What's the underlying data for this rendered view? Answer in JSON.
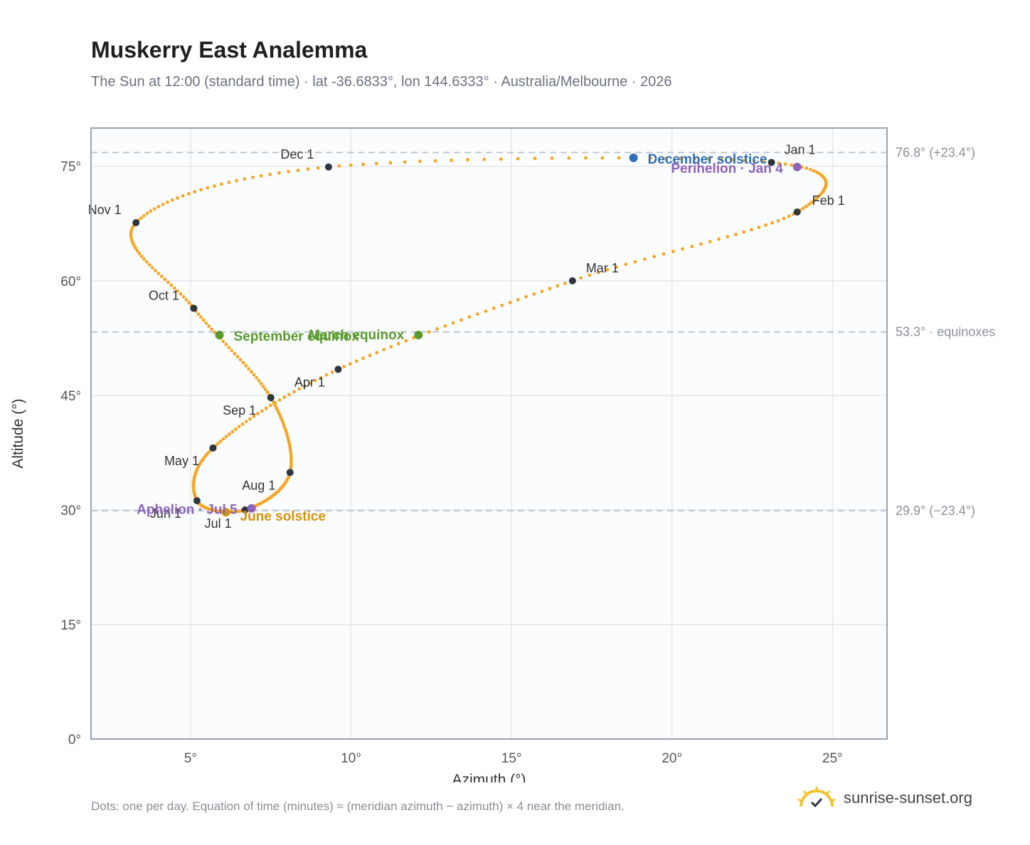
{
  "title": "Muskerry East Analemma",
  "subtitle": "The Sun at 12:00 (standard time) · lat -36.6833°, lon 144.6333° · Australia/Melbourne · 2026",
  "footnote": "Dots: one per day. Equation of time (minutes) ≈ (meridian azimuth − azimuth) × 4 near the meridian.",
  "brand": {
    "name": "sunrise-sunset.org",
    "icon": "sun-check-icon"
  },
  "colors": {
    "curve": "#f5a623",
    "month_point": "#2f3640",
    "solstice_december": "#2f6fb5",
    "solstice_june": "#d4920a",
    "equinox": "#5a9a2f",
    "perihelion": "#8e63b8",
    "reference_line": "#b8c2ce",
    "grid": "#e5e8ec",
    "plot_bg": "#fbfcfd",
    "frame": "#9aa3af"
  },
  "chart_data": {
    "type": "scatter",
    "title": "Muskerry East Analemma",
    "xlabel": "Azimuth (°)",
    "ylabel": "Altitude (°)",
    "xlim": [
      1.9,
      26.7
    ],
    "ylim": [
      0,
      80
    ],
    "x_ticks": [
      5,
      10,
      15,
      20,
      25
    ],
    "x_tick_labels": [
      "5°",
      "10°",
      "15°",
      "20°",
      "25°"
    ],
    "y_ticks": [
      0,
      15,
      30,
      45,
      60,
      75
    ],
    "y_tick_labels": [
      "0°",
      "15°",
      "30°",
      "45°",
      "60°",
      "75°"
    ],
    "grid": true,
    "reference_lines": [
      {
        "y": 76.8,
        "label": "76.8° (+23.4°)"
      },
      {
        "y": 53.3,
        "label": "53.3° · equinoxes"
      },
      {
        "y": 29.9,
        "label": "29.9° (−23.4°)"
      }
    ],
    "months": [
      {
        "label": "Jan 1",
        "x": 23.1,
        "y": 75.5
      },
      {
        "label": "Feb 1",
        "x": 23.9,
        "y": 69.0
      },
      {
        "label": "Mar 1",
        "x": 16.9,
        "y": 60.0
      },
      {
        "label": "Apr 1",
        "x": 9.6,
        "y": 48.4
      },
      {
        "label": "May 1",
        "x": 5.7,
        "y": 38.1
      },
      {
        "label": "Jun 1",
        "x": 5.2,
        "y": 31.2
      },
      {
        "label": "Jul 1",
        "x": 6.7,
        "y": 30.0
      },
      {
        "label": "Aug 1",
        "x": 8.1,
        "y": 34.9
      },
      {
        "label": "Sep 1",
        "x": 7.5,
        "y": 44.7
      },
      {
        "label": "Oct 1",
        "x": 5.1,
        "y": 56.4
      },
      {
        "label": "Nov 1",
        "x": 3.3,
        "y": 67.6
      },
      {
        "label": "Dec 1",
        "x": 9.3,
        "y": 74.9
      }
    ],
    "events": [
      {
        "label": "December solstice",
        "x": 18.8,
        "y": 76.1,
        "kind": "solstice_december"
      },
      {
        "label": "Perihelion · Jan 4",
        "x": 23.9,
        "y": 74.9,
        "kind": "perihelion"
      },
      {
        "label": "March equinox",
        "x": 12.1,
        "y": 52.9,
        "kind": "equinox"
      },
      {
        "label": "September equinox",
        "x": 5.9,
        "y": 52.9,
        "kind": "equinox"
      },
      {
        "label": "June solstice",
        "x": 6.1,
        "y": 29.7,
        "kind": "solstice_june"
      },
      {
        "label": "Aphelion · Jul 5",
        "x": 6.9,
        "y": 30.2,
        "kind": "perihelion"
      }
    ]
  }
}
